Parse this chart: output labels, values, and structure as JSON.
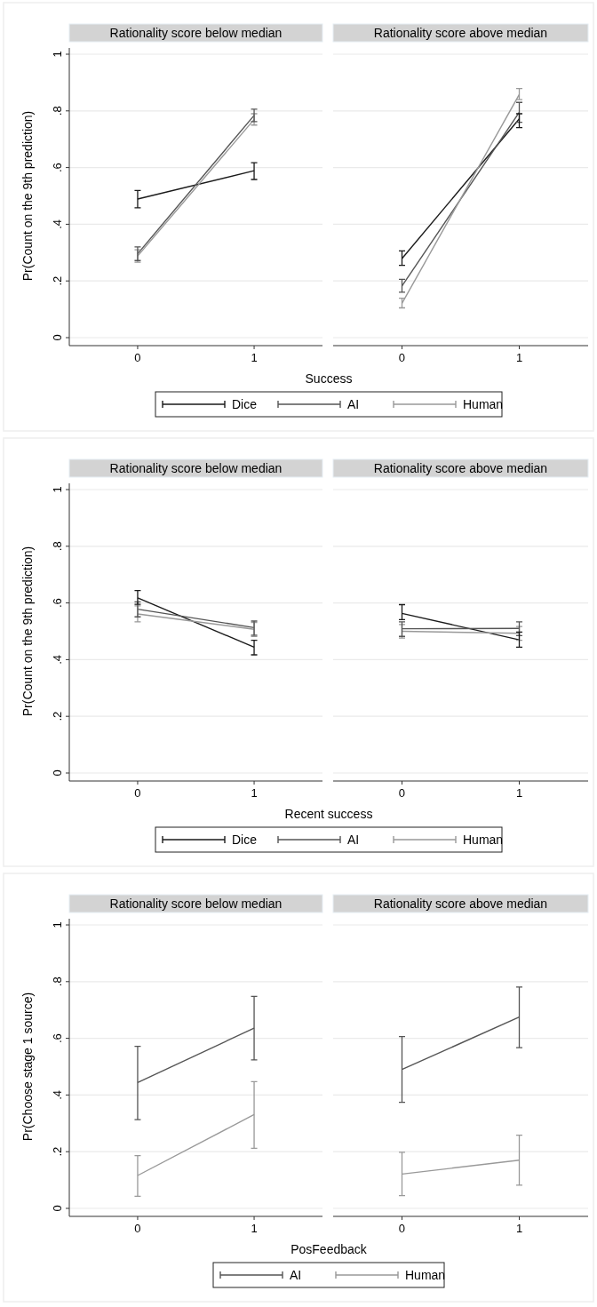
{
  "chart_data": [
    {
      "type": "line",
      "title": "Rationality score below median",
      "ylabel": "Pr(Count on the 9th prediction)",
      "xlabel": "Success",
      "categories": [
        "0",
        "1"
      ],
      "ylim": [
        0,
        1
      ],
      "yticks": [
        {
          "value": 0,
          "label": "0"
        },
        {
          "value": 0.2,
          "label": ".2"
        },
        {
          "value": 0.4,
          "label": ".4"
        },
        {
          "value": 0.6,
          "label": ".6"
        },
        {
          "value": 0.8,
          "label": ".8"
        },
        {
          "value": 1,
          "label": "1"
        }
      ],
      "grid": "y",
      "legend": "bottom",
      "series": [
        {
          "name": "Dice",
          "color": "#1a1a1a",
          "values": [
            0.489,
            0.589
          ],
          "errors": [
            [
              0.458,
              0.519
            ],
            [
              0.558,
              0.617
            ]
          ]
        },
        {
          "name": "AI",
          "color": "#555555",
          "values": [
            0.296,
            0.784
          ],
          "errors": [
            [
              0.272,
              0.32
            ],
            [
              0.762,
              0.806
            ]
          ]
        },
        {
          "name": "Human",
          "color": "#999999",
          "values": [
            0.288,
            0.77
          ],
          "errors": [
            [
              0.266,
              0.31
            ],
            [
              0.75,
              0.79
            ]
          ]
        }
      ]
    },
    {
      "type": "line",
      "title": "Rationality score above median",
      "categories": [
        "0",
        "1"
      ],
      "ylim": [
        0,
        1
      ],
      "yticks": [
        {
          "value": 0,
          "label": null
        },
        {
          "value": 0.2,
          "label": null
        },
        {
          "value": 0.4,
          "label": null
        },
        {
          "value": 0.6,
          "label": null
        },
        {
          "value": 0.8,
          "label": null
        },
        {
          "value": 1,
          "label": null
        }
      ],
      "grid": "y",
      "tick_labels": "x",
      "series": [
        {
          "color": "#1a1a1a",
          "values": [
            0.279,
            0.772
          ],
          "errors": [
            [
              0.255,
              0.306
            ],
            [
              0.741,
              0.79
            ]
          ]
        },
        {
          "color": "#555555",
          "values": [
            0.182,
            0.795
          ],
          "errors": [
            [
              0.16,
              0.206
            ],
            [
              0.76,
              0.83
            ]
          ]
        },
        {
          "color": "#999999",
          "values": [
            0.121,
            0.858
          ],
          "errors": [
            [
              0.105,
              0.139
            ],
            [
              0.84,
              0.879
            ]
          ]
        }
      ]
    },
    {
      "type": "line",
      "title": "Rationality score below median",
      "ylabel": "Pr(Count on the 9th prediction)",
      "xlabel": "Recent success",
      "categories": [
        "0",
        "1"
      ],
      "ylim": [
        0,
        1
      ],
      "yticks": [
        {
          "value": 0,
          "label": "0"
        },
        {
          "value": 0.2,
          "label": ".2"
        },
        {
          "value": 0.4,
          "label": ".4"
        },
        {
          "value": 0.6,
          "label": ".6"
        },
        {
          "value": 0.8,
          "label": ".8"
        },
        {
          "value": 1,
          "label": "1"
        }
      ],
      "grid": "y",
      "legend": "bottom",
      "series": [
        {
          "name": "Dice",
          "color": "#1a1a1a",
          "values": [
            0.618,
            0.444
          ],
          "errors": [
            [
              0.595,
              0.644
            ],
            [
              0.417,
              0.468
            ]
          ]
        },
        {
          "name": "AI",
          "color": "#555555",
          "values": [
            0.578,
            0.513
          ],
          "errors": [
            [
              0.551,
              0.604
            ],
            [
              0.486,
              0.536
            ]
          ]
        },
        {
          "name": "Human",
          "color": "#999999",
          "values": [
            0.561,
            0.507
          ],
          "errors": [
            [
              0.533,
              0.59
            ],
            [
              0.482,
              0.531
            ]
          ]
        }
      ]
    },
    {
      "type": "line",
      "title": "Rationality score above median",
      "categories": [
        "0",
        "1"
      ],
      "ylim": [
        0,
        1
      ],
      "yticks": [
        {
          "value": 0,
          "label": null
        },
        {
          "value": 0.2,
          "label": null
        },
        {
          "value": 0.4,
          "label": null
        },
        {
          "value": 0.6,
          "label": null
        },
        {
          "value": 0.8,
          "label": null
        },
        {
          "value": 1,
          "label": null
        }
      ],
      "grid": "y",
      "tick_labels": "x",
      "series": [
        {
          "color": "#1a1a1a",
          "values": [
            0.563,
            0.47
          ],
          "errors": [
            [
              0.541,
              0.594
            ],
            [
              0.444,
              0.497
            ]
          ]
        },
        {
          "color": "#555555",
          "values": [
            0.509,
            0.51
          ],
          "errors": [
            [
              0.482,
              0.533
            ],
            [
              0.485,
              0.533
            ]
          ]
        },
        {
          "color": "#999999",
          "values": [
            0.5,
            0.493
          ],
          "errors": [
            [
              0.476,
              0.524
            ],
            [
              0.468,
              0.517
            ]
          ]
        }
      ]
    },
    {
      "type": "line",
      "title": "Rationality score below median",
      "ylabel": "Pr(Choose stage 1 source)",
      "xlabel": "PosFeedback",
      "categories": [
        "0",
        "1"
      ],
      "ylim": [
        0,
        1
      ],
      "yticks": [
        {
          "value": 0,
          "label": "0"
        },
        {
          "value": 0.2,
          "label": ".2"
        },
        {
          "value": 0.4,
          "label": ".4"
        },
        {
          "value": 0.6,
          "label": ".6"
        },
        {
          "value": 0.8,
          "label": ".8"
        },
        {
          "value": 1,
          "label": "1"
        }
      ],
      "grid": "y",
      "legend": "bottom",
      "series": [
        {
          "name": "AI",
          "color": "#555555",
          "values": [
            0.444,
            0.636
          ],
          "errors": [
            [
              0.313,
              0.572
            ],
            [
              0.524,
              0.748
            ]
          ]
        },
        {
          "name": "Human",
          "color": "#999999",
          "values": [
            0.116,
            0.331
          ],
          "errors": [
            [
              0.043,
              0.186
            ],
            [
              0.212,
              0.447
            ]
          ]
        }
      ]
    },
    {
      "type": "line",
      "title": "Rationality score above median",
      "categories": [
        "0",
        "1"
      ],
      "ylim": [
        0,
        1
      ],
      "yticks": [
        {
          "value": 0,
          "label": null
        },
        {
          "value": 0.2,
          "label": null
        },
        {
          "value": 0.4,
          "label": null
        },
        {
          "value": 0.6,
          "label": null
        },
        {
          "value": 0.8,
          "label": null
        },
        {
          "value": 1,
          "label": null
        }
      ],
      "grid": "y",
      "tick_labels": "x",
      "series": [
        {
          "color": "#555555",
          "values": [
            0.49,
            0.675
          ],
          "errors": [
            [
              0.374,
              0.606
            ],
            [
              0.567,
              0.781
            ]
          ]
        },
        {
          "color": "#999999",
          "values": [
            0.121,
            0.17
          ],
          "errors": [
            [
              0.045,
              0.198
            ],
            [
              0.082,
              0.258
            ]
          ]
        }
      ]
    }
  ]
}
